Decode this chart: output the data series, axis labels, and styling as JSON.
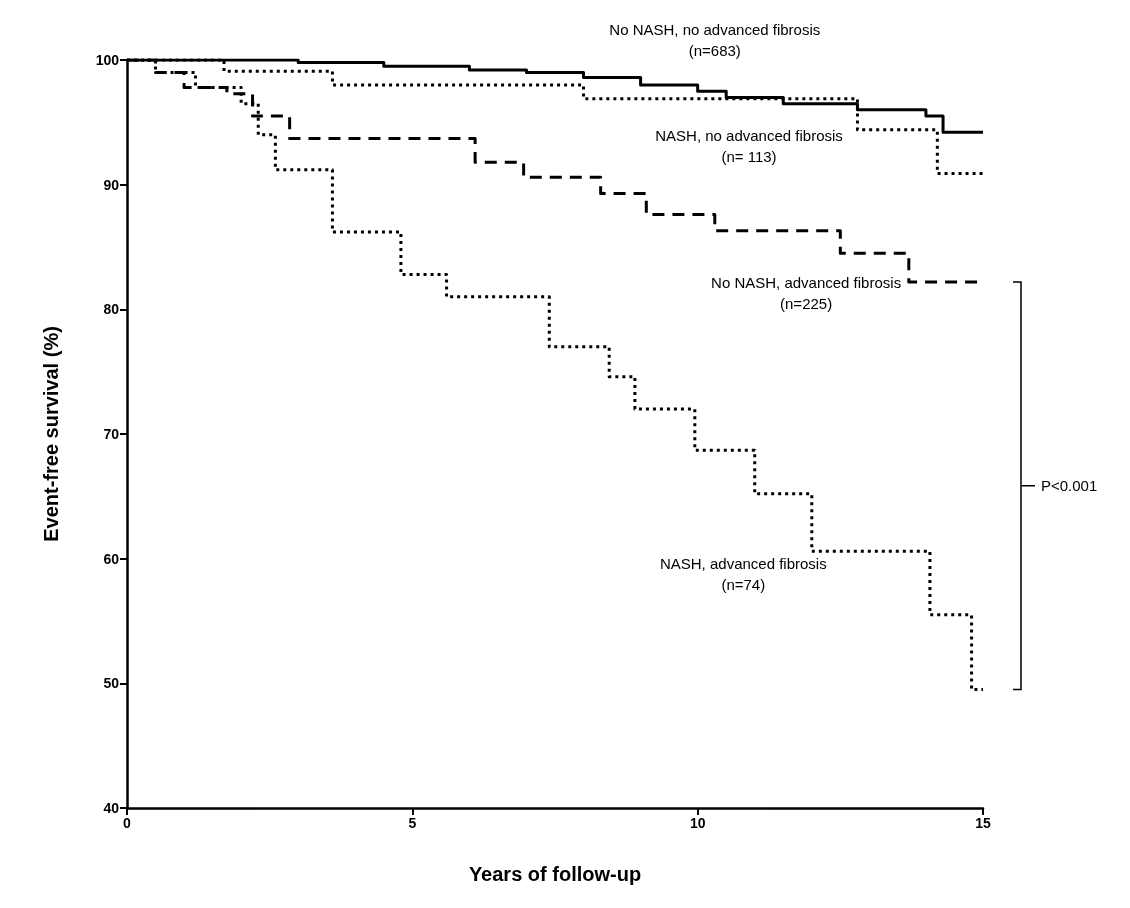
{
  "chart_data": {
    "type": "step",
    "xlabel": "Years of follow-up",
    "ylabel": "Event-free survival (%)",
    "xlim": [
      0,
      15
    ],
    "xticks": [
      0,
      5,
      10,
      15
    ],
    "ylim": [
      40,
      100
    ],
    "yticks": [
      40,
      50,
      60,
      70,
      80,
      90,
      100
    ],
    "grid": false,
    "legend": false,
    "marker": "none",
    "series": [
      {
        "name": "No NASH, no advanced fibrosis\n(n=683)",
        "color": "#000000",
        "line_style": "solid",
        "x": [
          0,
          3,
          4.5,
          6,
          7,
          8,
          9,
          10,
          10.5,
          11.5,
          12.8,
          14,
          14.3,
          15
        ],
        "values": [
          100,
          99.8,
          99.5,
          99.2,
          99,
          98.6,
          98,
          97.5,
          97,
          96.5,
          96,
          95.5,
          94.2,
          94.2
        ]
      },
      {
        "name": "NASH, no advanced fibrosis\n(n= 113)",
        "color": "#000000",
        "line_style": "dotted",
        "x": [
          0,
          1.7,
          3.6,
          8,
          12.8,
          14.2,
          15
        ],
        "values": [
          100,
          99.1,
          98,
          96.9,
          94.4,
          90.9,
          90.9
        ]
      },
      {
        "name": "No NASH, advanced fibrosis\n(n=225)",
        "color": "#000000",
        "line_style": "dashed",
        "x": [
          0,
          0.5,
          1,
          1.75,
          2.2,
          2.85,
          6.1,
          6.95,
          8.3,
          9.1,
          10.3,
          12.5,
          13.7,
          15
        ],
        "values": [
          100,
          99,
          97.8,
          97.3,
          95.5,
          93.7,
          91.8,
          90.6,
          89.3,
          87.6,
          86.3,
          84.5,
          82.2,
          82.2
        ]
      },
      {
        "name": "NASH, advanced fibrosis\n(n=74)",
        "color": "#000000",
        "line_style": "dotted",
        "x": [
          0,
          0.5,
          1.2,
          2,
          2.3,
          2.6,
          3.6,
          4.8,
          5.6,
          7.4,
          8.45,
          8.9,
          9.95,
          11,
          12,
          14.07,
          14.8,
          15
        ],
        "values": [
          100,
          99,
          97.8,
          96.5,
          94,
          91.2,
          86.2,
          82.8,
          81,
          77,
          74.6,
          72,
          68.7,
          65.2,
          60.6,
          55.5,
          49.5,
          49.5
        ]
      }
    ],
    "annotations": [
      "P<0.001"
    ]
  }
}
